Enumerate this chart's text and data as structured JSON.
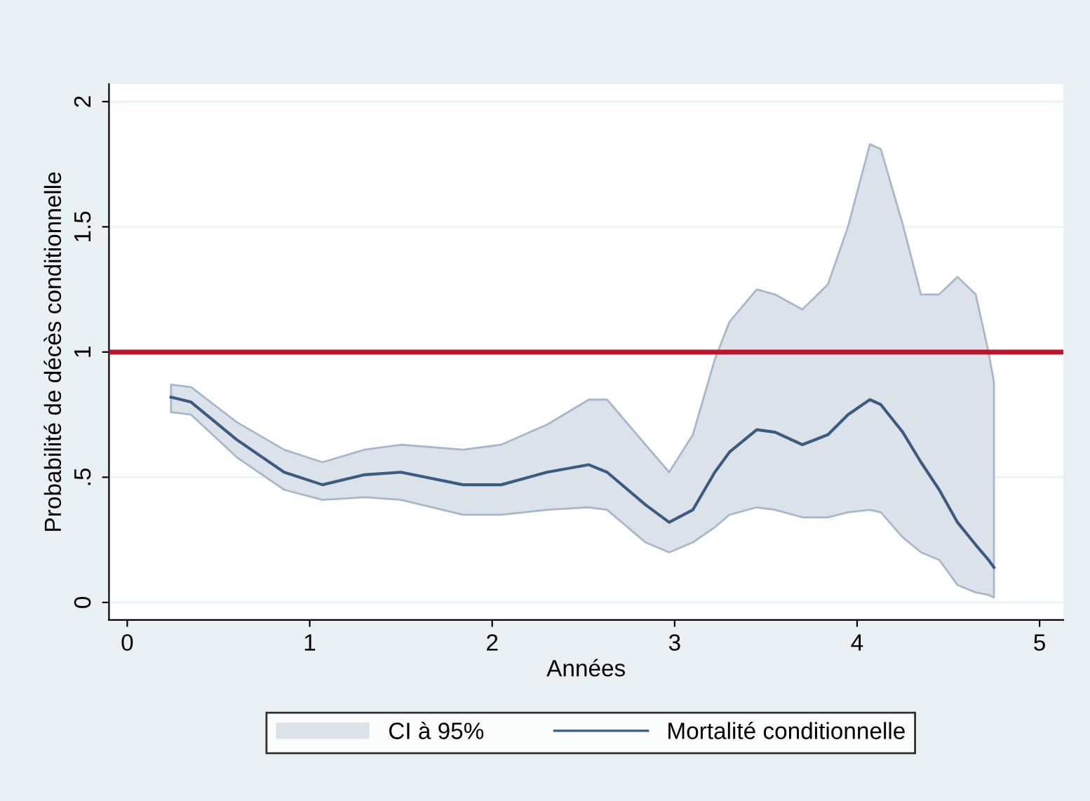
{
  "chart_data": {
    "type": "line",
    "xlabel": "Années",
    "ylabel": "Probabilité de décès conditionnelle",
    "x": [
      0.24,
      0.35,
      0.6,
      0.86,
      1.07,
      1.3,
      1.5,
      1.84,
      2.05,
      2.3,
      2.53,
      2.63,
      2.84,
      2.97,
      3.1,
      3.22,
      3.3,
      3.45,
      3.55,
      3.7,
      3.84,
      3.95,
      4.07,
      4.13,
      4.25,
      4.35,
      4.45,
      4.55,
      4.65,
      4.72,
      4.75
    ],
    "series": [
      {
        "name": "Mortalité conditionnelle",
        "color": "#3b5b80",
        "values": [
          0.82,
          0.8,
          0.65,
          0.52,
          0.47,
          0.51,
          0.52,
          0.47,
          0.47,
          0.52,
          0.55,
          0.52,
          0.39,
          0.32,
          0.37,
          0.52,
          0.6,
          0.69,
          0.68,
          0.63,
          0.67,
          0.75,
          0.81,
          0.79,
          0.68,
          0.56,
          0.45,
          0.32,
          0.23,
          0.17,
          0.14
        ],
        "lower": [
          0.76,
          0.75,
          0.58,
          0.45,
          0.41,
          0.42,
          0.41,
          0.35,
          0.35,
          0.37,
          0.38,
          0.37,
          0.24,
          0.2,
          0.24,
          0.3,
          0.35,
          0.38,
          0.37,
          0.34,
          0.34,
          0.36,
          0.37,
          0.36,
          0.26,
          0.2,
          0.17,
          0.07,
          0.04,
          0.03,
          0.02
        ],
        "upper": [
          0.87,
          0.86,
          0.72,
          0.61,
          0.56,
          0.61,
          0.63,
          0.61,
          0.63,
          0.71,
          0.81,
          0.81,
          0.63,
          0.52,
          0.67,
          0.97,
          1.12,
          1.25,
          1.23,
          1.17,
          1.27,
          1.5,
          1.83,
          1.81,
          1.51,
          1.23,
          1.23,
          1.3,
          1.23,
          1.0,
          0.88
        ]
      }
    ],
    "annotations": [
      "CI à 95%"
    ],
    "ref_lines": [
      {
        "axis": "y",
        "value": 1,
        "color": "#c0142c"
      }
    ],
    "xlim": [
      -0.1,
      5.13
    ],
    "ylim": [
      -0.07,
      2.07
    ],
    "xticks": [
      0,
      1,
      2,
      3,
      4,
      5
    ],
    "yticks": [
      0,
      {
        "value": 0.5,
        "label": ".5"
      },
      1,
      1.5,
      2
    ],
    "grid": "y",
    "legend": "bottom",
    "marker": "none",
    "line_style": "solid"
  }
}
